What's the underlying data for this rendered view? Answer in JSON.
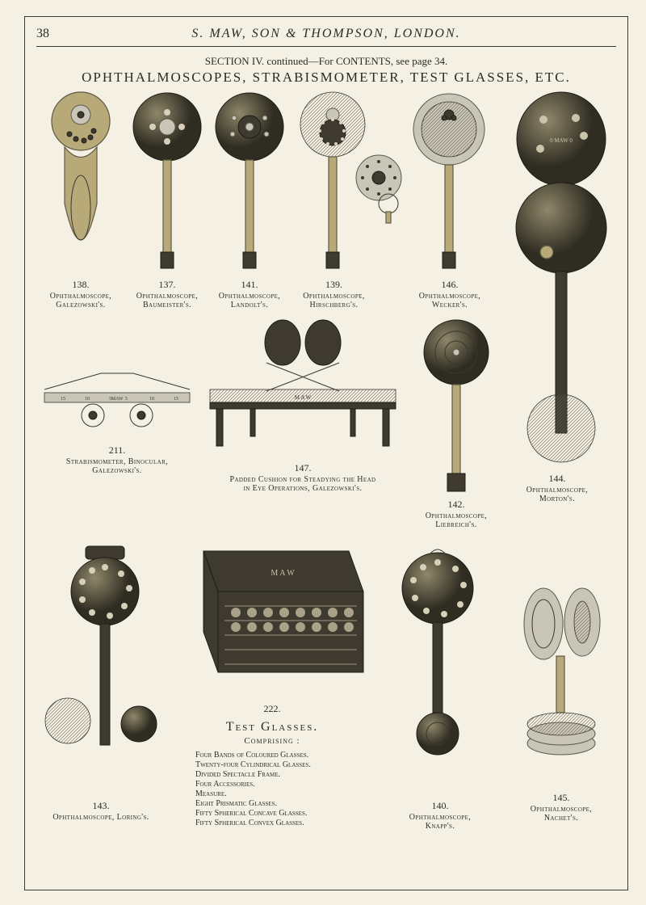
{
  "page_number": "38",
  "running_head": "S. MAW, SON & THOMPSON, LONDON.",
  "section_line": "SECTION IV. continued—For CONTENTS, see page 34.",
  "content_title": "OPHTHALMOSCOPES, STRABISMOMETER, TEST GLASSES, ETC.",
  "colors": {
    "page_bg": "#f4f0e4",
    "ink": "#2b2b28",
    "brass": "#b7a978",
    "brass_stroke": "#5f5946",
    "dark": "#3e3a30",
    "steel": "#c9c5b7"
  },
  "top_row": [
    {
      "num": "138.",
      "cap": "Ophthalmoscope,\nGalezowski's."
    },
    {
      "num": "137.",
      "cap": "Ophthalmoscope,\nBaumeister's."
    },
    {
      "num": "141.",
      "cap": "Ophthalmoscope,\nLandolt's."
    },
    {
      "num": "139.",
      "cap": "Ophthalmoscope,\nHirschberg's."
    },
    {
      "num": "146.",
      "cap": "Ophthalmoscope,\nWecker's."
    }
  ],
  "mid": {
    "strab": {
      "num": "211.",
      "cap": "Strabismometer, Binocular,\nGalezowski's."
    },
    "cushion": {
      "num": "147.",
      "cap": "Padded Cushion for Steadying the Head\nin Eye Operations, Galezowski's."
    },
    "liebreich": {
      "num": "142.",
      "cap": "Ophthalmoscope,\nLiebreich's."
    },
    "morton": {
      "num": "144.",
      "cap": "Ophthalmoscope,\nMorton's."
    }
  },
  "bottom": {
    "loring": {
      "num": "143.",
      "cap": "Ophthalmoscope, Loring's."
    },
    "case": {
      "num": "222."
    },
    "test_heading": "Test Glasses.",
    "test_sub": "Comprising :",
    "test_list": [
      "Four Bands of Coloured Glasses.",
      "Twenty-four Cylindrical Glasses.",
      "Divided Spectacle Frame.",
      "Four Accessories.",
      "Measure.",
      "Eight Prismatic Glasses.",
      "Fifty Spherical Concave Glasses.",
      "Fifty Spherical Convex Glasses."
    ],
    "knapp": {
      "num": "140.",
      "cap": "Ophthalmoscope,\nKnapp's."
    },
    "nachet": {
      "num": "145.",
      "cap": "Ophthalmoscope,\nNachet's."
    }
  }
}
